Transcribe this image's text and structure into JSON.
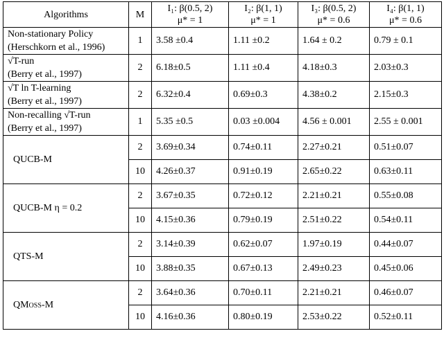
{
  "table": {
    "header": [
      [
        "Algorithms"
      ],
      [
        "M"
      ],
      [
        "I₁: β(0.5, 2)",
        "μ* = 1"
      ],
      [
        "I₂: β(1, 1)",
        "μ* = 1"
      ],
      [
        "I₃: β(0.5, 2)",
        "μ* = 0.6"
      ],
      [
        "I₄: β(1, 1)",
        "μ* = 0.6"
      ]
    ],
    "rows": [
      {
        "algorithm": [
          "Non-stationary Policy",
          "(Herschkorn et al., 1996)"
        ],
        "settings": [
          [
            "1",
            "3.58 ±0.4",
            "1.11 ±0.2",
            "1.64 ± 0.2",
            "0.79 ± 0.1"
          ]
        ]
      },
      {
        "algorithm": [
          "√T-run",
          "(Berry et al., 1997)"
        ],
        "settings": [
          [
            "2",
            "6.18±0.5",
            "1.11 ±0.4",
            "4.18±0.3",
            "2.03±0.3"
          ]
        ]
      },
      {
        "algorithm": [
          "√T ln T-learning",
          "(Berry et al., 1997)"
        ],
        "settings": [
          [
            "2",
            "6.32±0.4",
            "0.69±0.3",
            "4.38±0.2",
            "2.15±0.3"
          ]
        ]
      },
      {
        "algorithm": [
          "Non-recalling √T-run",
          "(Berry et al., 1997)"
        ],
        "settings": [
          [
            "1",
            "5.35 ±0.5",
            "0.03 ±0.004",
            "4.56 ± 0.001",
            "2.55 ± 0.001"
          ]
        ]
      },
      {
        "algorithm": [
          "QUCB-M"
        ],
        "settings": [
          [
            "2",
            "3.69±0.34",
            "0.74±0.11",
            "2.27±0.21",
            "0.51±0.07"
          ],
          [
            "10",
            "4.26±0.37",
            "0.91±0.19",
            "2.65±0.22",
            "0.63±0.11"
          ]
        ]
      },
      {
        "algorithm": [
          "QUCB-M η = 0.2"
        ],
        "settings": [
          [
            "2",
            "3.67±0.35",
            "0.72±0.12",
            "2.21±0.21",
            "0.55±0.08"
          ],
          [
            "10",
            "4.15±0.36",
            "0.79±0.19",
            "2.51±0.22",
            "0.54±0.11"
          ]
        ]
      },
      {
        "algorithm": [
          "QTS-M"
        ],
        "settings": [
          [
            "2",
            "3.14±0.39",
            "0.62±0.07",
            "1.97±0.19",
            "0.44±0.07"
          ],
          [
            "10",
            "3.88±0.35",
            "0.67±0.13",
            "2.49±0.23",
            "0.45±0.06"
          ]
        ]
      },
      {
        "algorithm": [
          "QMoss-M"
        ],
        "settings": [
          [
            "2",
            "3.64±0.36",
            "0.70±0.11",
            "2.21±0.21",
            "0.46±0.07"
          ],
          [
            "10",
            "4.16±0.36",
            "0.80±0.19",
            "2.53±0.22",
            "0.52±0.11"
          ]
        ]
      }
    ]
  }
}
